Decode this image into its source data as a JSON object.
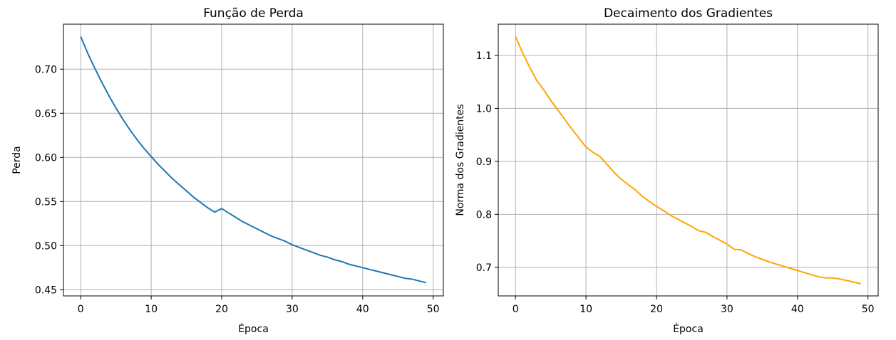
{
  "chart_data": [
    {
      "type": "line",
      "title": "Função de Perda",
      "xlabel": "Época",
      "ylabel": "Perda",
      "xlim": [
        -2.45,
        51.45
      ],
      "ylim": [
        0.443,
        0.751
      ],
      "xticks": [
        0,
        10,
        20,
        30,
        40,
        50
      ],
      "xtick_labels": [
        "0",
        "10",
        "20",
        "30",
        "40",
        "50"
      ],
      "yticks": [
        0.45,
        0.5,
        0.55,
        0.6,
        0.65,
        0.7
      ],
      "ytick_labels": [
        "0.45",
        "0.50",
        "0.55",
        "0.60",
        "0.65",
        "0.70"
      ],
      "grid": true,
      "series": [
        {
          "color": "#1f77b4",
          "x": [
            0,
            1,
            2,
            3,
            4,
            5,
            6,
            7,
            8,
            9,
            10,
            11,
            12,
            13,
            14,
            15,
            16,
            17,
            18,
            19,
            20,
            21,
            22,
            23,
            24,
            25,
            26,
            27,
            28,
            29,
            30,
            31,
            32,
            33,
            34,
            35,
            36,
            37,
            38,
            39,
            40,
            41,
            42,
            43,
            44,
            45,
            46,
            47,
            48,
            49
          ],
          "y": [
            0.737,
            0.718,
            0.701,
            0.685,
            0.67,
            0.656,
            0.643,
            0.631,
            0.62,
            0.61,
            0.601,
            0.592,
            0.584,
            0.576,
            0.569,
            0.562,
            0.555,
            0.549,
            0.543,
            0.538,
            0.542,
            0.537,
            0.532,
            0.527,
            0.523,
            0.519,
            0.515,
            0.511,
            0.508,
            0.505,
            0.501,
            0.498,
            0.495,
            0.492,
            0.489,
            0.487,
            0.484,
            0.482,
            0.479,
            0.477,
            0.475,
            0.473,
            0.471,
            0.469,
            0.467,
            0.465,
            0.463,
            0.462,
            0.46,
            0.458
          ]
        }
      ]
    },
    {
      "type": "line",
      "title": "Decaimento dos Gradientes",
      "xlabel": "Época",
      "ylabel": "Norma dos Gradientes",
      "xlim": [
        -2.45,
        51.45
      ],
      "ylim": [
        0.646,
        1.159
      ],
      "xticks": [
        0,
        10,
        20,
        30,
        40,
        50
      ],
      "xtick_labels": [
        "0",
        "10",
        "20",
        "30",
        "40",
        "50"
      ],
      "yticks": [
        0.7,
        0.8,
        0.9,
        1.0,
        1.1
      ],
      "ytick_labels": [
        "0.7",
        "0.8",
        "0.9",
        "1.0",
        "1.1"
      ],
      "grid": true,
      "series": [
        {
          "color": "#ffa500",
          "x": [
            0,
            1,
            2,
            3,
            4,
            5,
            6,
            7,
            8,
            9,
            10,
            11,
            12,
            13,
            14,
            15,
            16,
            17,
            18,
            19,
            20,
            21,
            22,
            23,
            24,
            25,
            26,
            27,
            28,
            29,
            30,
            31,
            32,
            33,
            34,
            35,
            36,
            37,
            38,
            39,
            40,
            41,
            42,
            43,
            44,
            45,
            46,
            47,
            48,
            49
          ],
          "y": [
            1.136,
            1.105,
            1.078,
            1.053,
            1.035,
            1.015,
            0.997,
            0.979,
            0.961,
            0.944,
            0.927,
            0.917,
            0.909,
            0.894,
            0.879,
            0.866,
            0.856,
            0.846,
            0.834,
            0.824,
            0.815,
            0.807,
            0.798,
            0.791,
            0.784,
            0.777,
            0.769,
            0.766,
            0.758,
            0.751,
            0.744,
            0.734,
            0.733,
            0.726,
            0.72,
            0.715,
            0.71,
            0.706,
            0.702,
            0.698,
            0.694,
            0.69,
            0.686,
            0.682,
            0.68,
            0.68,
            0.678,
            0.675,
            0.672,
            0.669
          ]
        }
      ]
    }
  ]
}
